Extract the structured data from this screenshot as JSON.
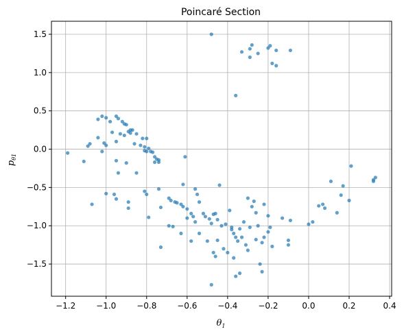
{
  "chart_data": {
    "type": "scatter",
    "title": "Poincaré Section",
    "xlabel_base": "θ",
    "xlabel_sub": "1",
    "ylabel_base": "p",
    "ylabel_sub": "θ1",
    "xlim": [
      -1.27,
      0.41
    ],
    "ylim": [
      -1.92,
      1.67
    ],
    "xticks": [
      -1.2,
      -1.0,
      -0.8,
      -0.6,
      -0.4,
      -0.2,
      0.0,
      0.2,
      0.4
    ],
    "xtick_labels": [
      "−1.2",
      "−1.0",
      "−0.8",
      "−0.6",
      "−0.4",
      "−0.2",
      "0.0",
      "0.2",
      "0.4"
    ],
    "yticks": [
      -1.5,
      -1.0,
      -0.5,
      0.0,
      0.5,
      1.0,
      1.5
    ],
    "ytick_labels": [
      "−1.5",
      "−1.0",
      "−0.5",
      "0.0",
      "0.5",
      "1.0",
      "1.5"
    ],
    "grid": true,
    "colors": {
      "marker": "#1f77b4",
      "grid": "#b0b0b0",
      "axes": "#000000"
    },
    "points": [
      [
        -0.48,
        1.5
      ],
      [
        -0.33,
        1.27
      ],
      [
        -0.29,
        1.31
      ],
      [
        -0.28,
        1.36
      ],
      [
        -0.29,
        1.2
      ],
      [
        -0.25,
        1.25
      ],
      [
        -0.2,
        1.32
      ],
      [
        -0.19,
        1.35
      ],
      [
        -0.16,
        1.29
      ],
      [
        -0.09,
        1.29
      ],
      [
        -0.18,
        1.12
      ],
      [
        -0.16,
        1.09
      ],
      [
        -0.36,
        0.7
      ],
      [
        -1.19,
        -0.05
      ],
      [
        -1.11,
        -0.16
      ],
      [
        -1.09,
        0.04
      ],
      [
        -1.08,
        0.07
      ],
      [
        -1.04,
        0.39
      ],
      [
        -1.02,
        0.43
      ],
      [
        -1.0,
        0.41
      ],
      [
        -0.98,
        0.36
      ],
      [
        -0.95,
        0.43
      ],
      [
        -0.94,
        0.4
      ],
      [
        -0.92,
        0.36
      ],
      [
        -0.91,
        0.33
      ],
      [
        -0.9,
        0.32
      ],
      [
        -0.93,
        0.2
      ],
      [
        -0.91,
        0.18
      ],
      [
        -0.89,
        0.23
      ],
      [
        -0.88,
        0.25
      ],
      [
        -0.87,
        0.25
      ],
      [
        -0.88,
        0.21
      ],
      [
        -0.85,
        0.2
      ],
      [
        -0.86,
        0.07
      ],
      [
        -0.83,
        0.05
      ],
      [
        -0.82,
        0.14
      ],
      [
        -0.8,
        0.14
      ],
      [
        -0.81,
        0.03
      ],
      [
        -0.79,
        0.01
      ],
      [
        -0.78,
        -0.03
      ],
      [
        -0.8,
        -0.03
      ],
      [
        -0.77,
        -0.04
      ],
      [
        -0.76,
        -0.1
      ],
      [
        -0.75,
        -0.13
      ],
      [
        -0.74,
        -0.14
      ],
      [
        -0.74,
        -0.17
      ],
      [
        -0.76,
        -0.17
      ],
      [
        -0.81,
        -0.02
      ],
      [
        -0.95,
        0.1
      ],
      [
        -0.97,
        0.22
      ],
      [
        -1.01,
        0.08
      ],
      [
        -1.0,
        0.05
      ],
      [
        -1.04,
        0.15
      ],
      [
        -1.02,
        -0.03
      ],
      [
        -0.95,
        -0.15
      ],
      [
        -0.94,
        -0.31
      ],
      [
        -0.9,
        -0.18
      ],
      [
        -0.85,
        -0.31
      ],
      [
        -0.61,
        -0.1
      ],
      [
        -0.62,
        -0.46
      ],
      [
        -0.56,
        -0.52
      ],
      [
        -0.44,
        -0.47
      ],
      [
        -1.0,
        -0.58
      ],
      [
        -0.96,
        -0.59
      ],
      [
        -0.95,
        -0.65
      ],
      [
        -1.07,
        -0.72
      ],
      [
        -0.89,
        -0.69
      ],
      [
        -0.89,
        -0.77
      ],
      [
        -0.81,
        -0.55
      ],
      [
        -0.8,
        -0.59
      ],
      [
        -0.79,
        -0.89
      ],
      [
        -0.74,
        -0.52
      ],
      [
        -0.69,
        -0.64
      ],
      [
        -0.68,
        -0.67
      ],
      [
        -0.66,
        -0.69
      ],
      [
        -0.65,
        -0.7
      ],
      [
        -0.63,
        -0.72
      ],
      [
        -0.62,
        -0.75
      ],
      [
        -0.6,
        -0.78
      ],
      [
        -0.58,
        -0.84
      ],
      [
        -0.57,
        -0.88
      ],
      [
        -0.55,
        -0.59
      ],
      [
        -0.54,
        -0.69
      ],
      [
        -0.52,
        -0.84
      ],
      [
        -0.51,
        -0.88
      ],
      [
        -0.49,
        -0.91
      ],
      [
        -0.48,
        -0.97
      ],
      [
        -0.47,
        -0.85
      ],
      [
        -0.46,
        -0.84
      ],
      [
        -0.45,
        -0.92
      ],
      [
        -0.43,
        -1.0
      ],
      [
        -0.41,
        -0.98
      ],
      [
        -0.73,
        -0.76
      ],
      [
        -0.73,
        -1.28
      ],
      [
        -0.69,
        -1.0
      ],
      [
        -0.67,
        -1.01
      ],
      [
        -0.63,
        -1.1
      ],
      [
        -0.6,
        -0.9
      ],
      [
        -0.58,
        -1.2
      ],
      [
        -0.56,
        -0.95
      ],
      [
        -0.54,
        -1.1
      ],
      [
        -0.5,
        -1.2
      ],
      [
        -0.47,
        -1.35
      ],
      [
        -0.46,
        -1.4
      ],
      [
        -0.48,
        -1.77
      ],
      [
        -0.45,
        -1.19
      ],
      [
        -0.42,
        -1.3
      ],
      [
        -0.4,
        -1.35
      ],
      [
        -0.38,
        -1.05
      ],
      [
        -0.37,
        -1.1
      ],
      [
        -0.36,
        -1.15
      ],
      [
        -0.35,
        -1.2
      ],
      [
        -0.37,
        -1.42
      ],
      [
        -0.36,
        -1.66
      ],
      [
        -0.34,
        -1.62
      ],
      [
        -0.34,
        -1.04
      ],
      [
        -0.33,
        -1.15
      ],
      [
        -0.31,
        -1.25
      ],
      [
        -0.3,
        -1.32
      ],
      [
        -0.29,
        -1.02
      ],
      [
        -0.27,
        -0.68
      ],
      [
        -0.28,
        -0.75
      ],
      [
        -0.3,
        -0.64
      ],
      [
        -0.26,
        -0.83
      ],
      [
        -0.25,
        -1.0
      ],
      [
        -0.24,
        -1.5
      ],
      [
        -0.23,
        -1.6
      ],
      [
        -0.22,
        -0.72
      ],
      [
        -0.2,
        -0.87
      ],
      [
        -0.2,
        -1.08
      ],
      [
        -0.19,
        -1.02
      ],
      [
        -0.18,
        -1.27
      ],
      [
        -0.13,
        -0.9
      ],
      [
        -0.1,
        -1.19
      ],
      [
        -0.1,
        -1.25
      ],
      [
        -0.09,
        -0.93
      ],
      [
        -0.22,
        -1.15
      ],
      [
        -0.23,
        -1.22
      ],
      [
        -0.26,
        -1.18
      ],
      [
        -0.32,
        -0.95
      ],
      [
        -0.39,
        -0.8
      ],
      [
        -0.38,
        -1.02
      ],
      [
        0.0,
        -0.98
      ],
      [
        0.02,
        -0.95
      ],
      [
        0.05,
        -0.74
      ],
      [
        0.07,
        -0.72
      ],
      [
        0.08,
        -0.77
      ],
      [
        0.11,
        -0.42
      ],
      [
        0.14,
        -0.83
      ],
      [
        0.16,
        -0.6
      ],
      [
        0.17,
        -0.48
      ],
      [
        0.2,
        -0.67
      ],
      [
        0.21,
        -0.22
      ],
      [
        0.32,
        -0.4
      ],
      [
        0.32,
        -0.42
      ],
      [
        0.33,
        -0.37
      ]
    ]
  }
}
